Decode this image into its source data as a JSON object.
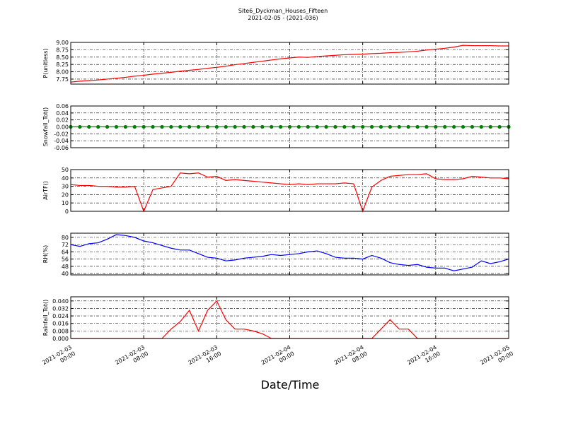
{
  "title": "Site6_Dyckman_Houses_Fifteen",
  "subtitle": "2021-02-05 - (2021-036)",
  "xlabel": "Date/Time",
  "x": [
    "2021-02-03 00:00",
    "2021-02-03 01:00",
    "2021-02-03 02:00",
    "2021-02-03 03:00",
    "2021-02-03 04:00",
    "2021-02-03 05:00",
    "2021-02-03 06:00",
    "2021-02-03 07:00",
    "2021-02-03 08:00",
    "2021-02-03 09:00",
    "2021-02-03 10:00",
    "2021-02-03 11:00",
    "2021-02-03 12:00",
    "2021-02-03 13:00",
    "2021-02-03 14:00",
    "2021-02-03 15:00",
    "2021-02-03 16:00",
    "2021-02-03 17:00",
    "2021-02-03 18:00",
    "2021-02-03 19:00",
    "2021-02-03 20:00",
    "2021-02-03 21:00",
    "2021-02-03 22:00",
    "2021-02-03 23:00",
    "2021-02-04 00:00",
    "2021-02-04 01:00",
    "2021-02-04 02:00",
    "2021-02-04 03:00",
    "2021-02-04 04:00",
    "2021-02-04 05:00",
    "2021-02-04 06:00",
    "2021-02-04 07:00",
    "2021-02-04 08:00",
    "2021-02-04 09:00",
    "2021-02-04 10:00",
    "2021-02-04 11:00",
    "2021-02-04 12:00",
    "2021-02-04 13:00",
    "2021-02-04 14:00",
    "2021-02-04 15:00",
    "2021-02-04 16:00",
    "2021-02-04 17:00",
    "2021-02-04 18:00",
    "2021-02-04 19:00",
    "2021-02-04 20:00",
    "2021-02-04 21:00",
    "2021-02-04 22:00",
    "2021-02-04 23:00",
    "2021-02-05 00:00"
  ],
  "xlim": [
    "2021-02-03 00:00",
    "2021-02-05 00:00"
  ],
  "xticks": [
    "2021-02-03 00:00",
    "2021-02-03 08:00",
    "2021-02-03 16:00",
    "2021-02-04 00:00",
    "2021-02-04 08:00",
    "2021-02-04 16:00",
    "2021-02-05 00:00"
  ],
  "grid": true,
  "chart_data": [
    {
      "type": "line",
      "ylabel": "P(unitless)",
      "color": "#ff0000",
      "ylim": [
        7.58,
        9.0
      ],
      "yticks": [
        7.75,
        {
          "value": 8,
          "label": "8.00"
        },
        8.25,
        {
          "value": 8.5,
          "label": "8.50"
        },
        8.75,
        {
          "value": 9,
          "label": "9.00"
        }
      ],
      "values": [
        7.65,
        7.68,
        7.7,
        7.72,
        7.75,
        7.78,
        7.81,
        7.85,
        7.88,
        7.92,
        7.95,
        7.98,
        8.02,
        8.05,
        8.08,
        8.12,
        8.15,
        8.19,
        8.24,
        8.28,
        8.32,
        8.36,
        8.4,
        8.44,
        8.47,
        8.5,
        8.49,
        8.52,
        8.54,
        8.56,
        8.58,
        8.59,
        8.6,
        8.62,
        8.63,
        8.65,
        8.66,
        8.68,
        8.7,
        8.74,
        8.77,
        8.8,
        8.84,
        8.9,
        8.89,
        8.89,
        8.89,
        8.88,
        8.88
      ]
    },
    {
      "type": "line",
      "ylabel": "Snowfall_Tot()",
      "color": "#008000",
      "marker": true,
      "ylim": [
        -0.06,
        0.06
      ],
      "yticks": [
        -0.06,
        -0.04,
        -0.02,
        {
          "value": 0,
          "label": "0.00"
        },
        0.02,
        0.04,
        0.06
      ],
      "values": [
        0,
        0,
        0,
        0,
        0,
        0,
        0,
        0,
        0,
        0,
        0,
        0,
        0,
        0,
        0,
        0,
        0,
        0,
        0,
        0,
        0,
        0,
        0,
        0,
        0,
        0,
        0,
        0,
        0,
        0,
        0,
        0,
        0,
        0,
        0,
        0,
        0,
        0,
        0,
        0,
        0,
        0,
        0,
        0,
        0,
        0,
        0,
        0,
        0
      ]
    },
    {
      "type": "line",
      "ylabel": "AirTF()",
      "color": "#ff0000",
      "ylim": [
        0,
        50
      ],
      "yticks": [
        0,
        10,
        20,
        30,
        40,
        50
      ],
      "values": [
        32,
        31,
        31,
        30,
        30,
        29,
        29,
        30,
        0,
        26,
        28,
        30,
        46,
        45,
        46,
        41,
        42,
        37,
        38,
        37,
        36,
        35,
        34,
        33,
        32,
        33,
        32,
        33,
        33,
        33,
        34,
        33,
        0,
        29,
        37,
        42,
        43,
        44,
        44,
        45,
        39,
        38,
        38,
        39,
        42,
        41,
        40,
        40,
        39
      ]
    },
    {
      "type": "line",
      "ylabel": "RH(%)",
      "color": "#0000ff",
      "ylim": [
        38.5,
        84.6
      ],
      "yticks": [
        40,
        48,
        56,
        64,
        72,
        80
      ],
      "values": [
        72,
        70,
        73,
        74,
        78,
        83,
        82,
        80,
        76,
        74,
        71,
        68,
        66,
        66,
        62,
        58,
        57,
        54,
        55,
        57,
        58,
        59,
        61,
        60,
        61,
        62,
        64,
        65,
        62,
        58,
        57,
        57,
        56,
        60,
        57,
        52,
        50,
        49,
        50,
        47,
        46,
        46,
        43,
        45,
        47,
        54,
        51,
        53,
        56
      ]
    },
    {
      "type": "line",
      "ylabel": "Rainfall_Tot()",
      "color": "#ff0000",
      "ylim": [
        0,
        0.0444
      ],
      "yticks": [
        {
          "value": 0,
          "label": "0.000"
        },
        {
          "value": 0.008,
          "label": "0.008"
        },
        {
          "value": 0.016,
          "label": "0.016"
        },
        {
          "value": 0.024,
          "label": "0.024"
        },
        {
          "value": 0.032,
          "label": "0.032"
        },
        {
          "value": 0.04,
          "label": "0.040"
        }
      ],
      "values": [
        0,
        0,
        0,
        0,
        0,
        0,
        0,
        0,
        0,
        0,
        0,
        0.01,
        0.018,
        0.03,
        0.008,
        0.03,
        0.04,
        0.02,
        0.01,
        0.01,
        0.008,
        0.005,
        0,
        0,
        0,
        0,
        0,
        0,
        0,
        0,
        0,
        0,
        0,
        0,
        0.01,
        0.02,
        0.01,
        0.01,
        0,
        0,
        0,
        0,
        0,
        0,
        0,
        0,
        0,
        0,
        0
      ]
    }
  ]
}
